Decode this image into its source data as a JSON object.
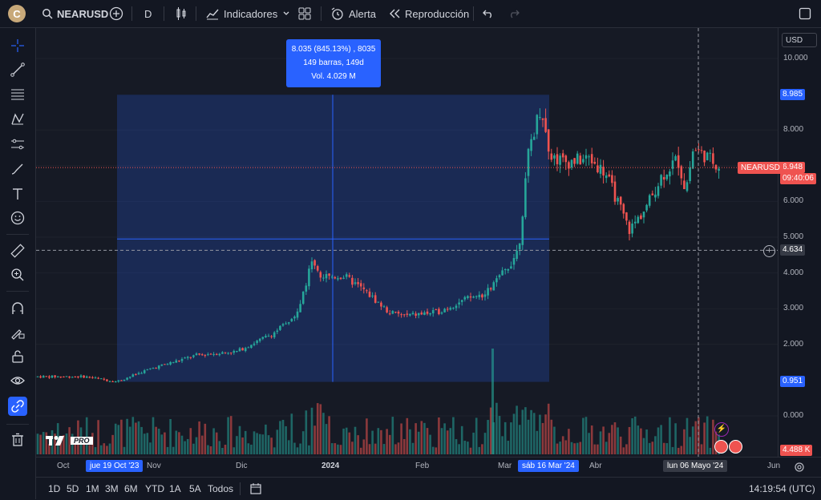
{
  "app": {
    "avatar_letter": "C"
  },
  "toolbar": {
    "symbol": "NEARUSD",
    "interval": "D",
    "indicators_label": "Indicadores",
    "alert_label": "Alerta",
    "replay_label": "Reproducción"
  },
  "left_tools": [
    "crosshair-icon",
    "trendline-icon",
    "fib-icon",
    "pattern-icon",
    "projection-icon",
    "brush-icon",
    "text-icon",
    "emoji-icon",
    "ruler-icon",
    "zoom-in-icon",
    "magnet-icon",
    "lock-drawing-icon",
    "lock-icon",
    "eye-icon",
    "link-icon",
    "trash-icon"
  ],
  "price_axis": {
    "currency": "USD",
    "ticks": [
      "10.000",
      "8.000",
      "7.000",
      "6.000",
      "5.000",
      "4.000",
      "3.000",
      "2.000",
      "0.000"
    ],
    "range_high": "8.985",
    "range_low": "0.951",
    "last_price": "6.948",
    "countdown": "09:40:06",
    "crosshair_price": "4.634",
    "volume_value": "4.488 K",
    "symbol_label": "NEARUSD"
  },
  "time_axis": {
    "labels": [
      "Oct",
      "Nov",
      "Dic",
      "2024",
      "Feb",
      "Mar",
      "Abr",
      "Jun"
    ],
    "start_tag": "jue 19 Oct '23",
    "end_tag": "sáb 16 Mar '24",
    "crosshair_tag": "lun 06 Mayo '24"
  },
  "measure_tooltip": {
    "line1": "8.035 (845.13%) , 8035",
    "line2": "149 barras, 149d",
    "line3": "Vol. 4.029 M"
  },
  "bottom": {
    "ranges": [
      "1D",
      "5D",
      "1M",
      "3M",
      "6M",
      "YTD",
      "1A",
      "5A",
      "Todos"
    ],
    "clock": "14:19:54 (UTC)"
  },
  "logo": {
    "pro": "PRO"
  },
  "colors": {
    "up": "#26a69a",
    "down": "#ef5350",
    "accent": "#2962ff",
    "bg": "#161a25"
  },
  "chart_data": {
    "type": "candlestick",
    "symbol": "NEARUSD",
    "interval": "1D",
    "ylim": [
      0,
      10
    ],
    "y_ticks": [
      0,
      2,
      3,
      4,
      5,
      6,
      7,
      8,
      10
    ],
    "x_labels": [
      "Oct",
      "Nov",
      "Dic",
      "2024",
      "Feb",
      "Mar",
      "Abr",
      "Jun"
    ],
    "last": 6.948,
    "measured_range": {
      "from": 0.951,
      "to": 8.985,
      "change": "8.035 (845.13%)",
      "bars": 149
    },
    "approx_close_path": [
      {
        "x": "Oct",
        "y": 1.1
      },
      {
        "x": "Nov",
        "y": 1.25
      },
      {
        "x": "mid Nov",
        "y": 1.6
      },
      {
        "x": "Dic",
        "y": 1.75
      },
      {
        "x": "mid Dic",
        "y": 2.3
      },
      {
        "x": "late Dic",
        "y": 4.2
      },
      {
        "x": "2024",
        "y": 3.9
      },
      {
        "x": "mid Ene",
        "y": 3.4
      },
      {
        "x": "late Ene",
        "y": 2.8
      },
      {
        "x": "Feb",
        "y": 2.9
      },
      {
        "x": "mid Feb",
        "y": 3.3
      },
      {
        "x": "late Feb",
        "y": 3.6
      },
      {
        "x": "Mar",
        "y": 4.2
      },
      {
        "x": "mid Mar",
        "y": 8.5
      },
      {
        "x": "late Mar",
        "y": 7.0
      },
      {
        "x": "Abr",
        "y": 7.2
      },
      {
        "x": "mid Abr",
        "y": 5.3
      },
      {
        "x": "late Abr",
        "y": 6.8
      },
      {
        "x": "May",
        "y": 7.2
      },
      {
        "x": "mid May",
        "y": 6.948
      }
    ]
  }
}
